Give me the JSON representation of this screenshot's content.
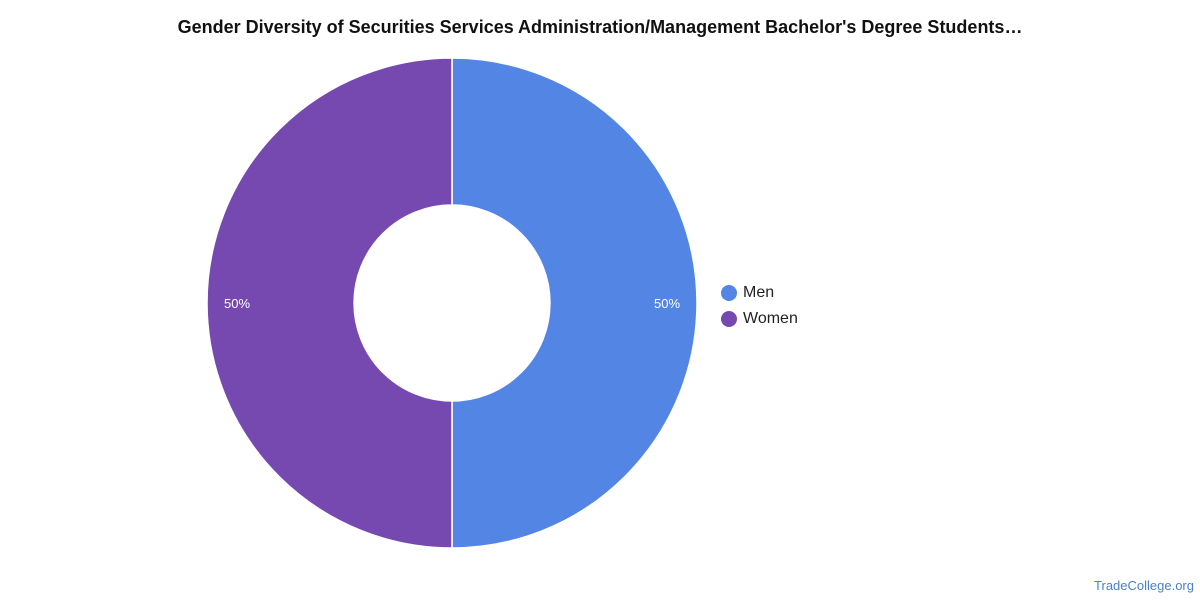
{
  "watermark": "TradeCollege.org",
  "chart_data": {
    "type": "pie",
    "title": "Gender Diversity of Securities Services Administration/Management Bachelor's Degree Students…",
    "categories": [
      "Men",
      "Women"
    ],
    "values": [
      50,
      50
    ],
    "labels": [
      "50%",
      "50%"
    ],
    "colors": [
      "#5386e4",
      "#7649b0"
    ],
    "donut": true,
    "legend_position": "right"
  }
}
